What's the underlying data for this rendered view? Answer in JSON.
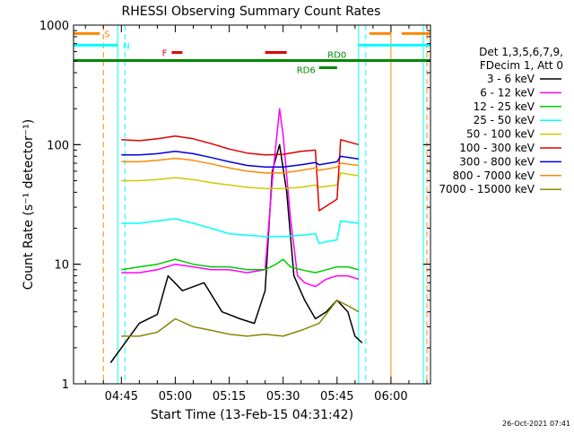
{
  "chart_data": {
    "type": "line",
    "title": "RHESSI Observing Summary Count Rates",
    "xlabel": "Start Time (13-Feb-15 04:31:42)",
    "ylabel": "Count Rate (s⁻¹ detector⁻¹)",
    "y_scale": "log",
    "ylim": [
      1,
      1000
    ],
    "xlim": [
      "04:31:42",
      "06:11:00"
    ],
    "x_ticks": [
      "04:45",
      "05:00",
      "05:15",
      "05:30",
      "05:45",
      "06:00"
    ],
    "y_ticks": [
      "1",
      "10",
      "100",
      "1000"
    ],
    "legend_header": [
      "Det 1,3,5,6,7,9,",
      "FDecim 1, Att 0"
    ],
    "footer_date": "26-Oct-2021 07:41",
    "series": [
      {
        "name": "3 - 6 keV",
        "color": "#000000",
        "x": [
          "04:42",
          "04:50",
          "04:55",
          "04:58",
          "05:02",
          "05:08",
          "05:13",
          "05:18",
          "05:22",
          "05:25",
          "05:27",
          "05:29",
          "05:31",
          "05:33",
          "05:36",
          "05:39",
          "05:42",
          "05:45",
          "05:48",
          "05:50",
          "05:52"
        ],
        "y": [
          1.5,
          3.2,
          3.8,
          8,
          6,
          7,
          4,
          3.5,
          3.2,
          6,
          60,
          100,
          40,
          8,
          5,
          3.5,
          4,
          5,
          4,
          2.5,
          2.2
        ]
      },
      {
        "name": "6 - 12 keV",
        "color": "#ff00ff",
        "x": [
          "04:45",
          "04:50",
          "04:55",
          "05:00",
          "05:05",
          "05:10",
          "05:15",
          "05:20",
          "05:25",
          "05:27",
          "05:29",
          "05:30",
          "05:32",
          "05:34",
          "05:36",
          "05:39",
          "05:42",
          "05:45",
          "05:48",
          "05:51"
        ],
        "y": [
          8.5,
          8.5,
          9,
          10,
          9.5,
          9,
          9,
          8.5,
          9,
          50,
          200,
          120,
          25,
          8,
          7,
          6.5,
          7.5,
          8,
          8,
          7.5
        ]
      },
      {
        "name": "12 - 25 keV",
        "color": "#00cc00",
        "x": [
          "04:45",
          "04:50",
          "04:55",
          "05:00",
          "05:05",
          "05:10",
          "05:15",
          "05:20",
          "05:25",
          "05:28",
          "05:30",
          "05:32",
          "05:35",
          "05:39",
          "05:42",
          "05:45",
          "05:48",
          "05:51"
        ],
        "y": [
          9,
          9.5,
          10,
          11,
          10,
          9.5,
          9.5,
          9,
          9,
          10,
          11,
          9.5,
          9,
          8.5,
          9,
          9.5,
          9.5,
          9
        ]
      },
      {
        "name": "25 - 50 keV",
        "color": "#00ffff",
        "x": [
          "04:45",
          "04:50",
          "04:55",
          "05:00",
          "05:05",
          "05:10",
          "05:15",
          "05:20",
          "05:25",
          "05:30",
          "05:35",
          "05:39",
          "05:40",
          "05:45",
          "05:46",
          "05:51"
        ],
        "y": [
          22,
          22,
          23,
          24,
          22,
          20,
          18,
          17.5,
          17,
          17,
          17.5,
          18,
          15,
          16,
          23,
          22
        ]
      },
      {
        "name": "50 - 100 keV",
        "color": "#cccc00",
        "x": [
          "04:45",
          "04:50",
          "04:55",
          "05:00",
          "05:05",
          "05:10",
          "05:15",
          "05:20",
          "05:25",
          "05:30",
          "05:35",
          "05:39",
          "05:40",
          "05:45",
          "05:46",
          "05:51"
        ],
        "y": [
          50,
          50,
          51,
          53,
          51,
          48,
          46,
          44,
          43,
          43,
          44,
          46,
          44,
          46,
          58,
          55
        ]
      },
      {
        "name": "100 - 300 keV",
        "color": "#dd0000",
        "x": [
          "04:45",
          "04:50",
          "04:55",
          "05:00",
          "05:05",
          "05:10",
          "05:15",
          "05:20",
          "05:25",
          "05:30",
          "05:35",
          "05:39",
          "05:40",
          "05:45",
          "05:46",
          "05:51"
        ],
        "y": [
          110,
          108,
          112,
          118,
          112,
          102,
          92,
          85,
          82,
          83,
          88,
          90,
          28,
          35,
          110,
          100
        ]
      },
      {
        "name": "300 - 800 keV",
        "color": "#0000dd",
        "x": [
          "04:45",
          "04:50",
          "04:55",
          "05:00",
          "05:05",
          "05:10",
          "05:15",
          "05:20",
          "05:25",
          "05:30",
          "05:35",
          "05:39",
          "05:40",
          "05:45",
          "05:46",
          "05:51"
        ],
        "y": [
          82,
          82,
          84,
          88,
          84,
          78,
          72,
          67,
          65,
          65,
          68,
          71,
          68,
          72,
          80,
          76
        ]
      },
      {
        "name": "800 - 7000 keV",
        "color": "#ff8800",
        "x": [
          "04:45",
          "04:50",
          "04:55",
          "05:00",
          "05:05",
          "05:10",
          "05:15",
          "05:20",
          "05:25",
          "05:30",
          "05:35",
          "05:39",
          "05:40",
          "05:45",
          "05:46",
          "05:51"
        ],
        "y": [
          72,
          72,
          74,
          77,
          74,
          69,
          64,
          60,
          58,
          58,
          61,
          64,
          61,
          65,
          70,
          67
        ]
      },
      {
        "name": "7000 - 15000 keV",
        "color": "#888800",
        "x": [
          "04:45",
          "04:50",
          "04:55",
          "05:00",
          "05:05",
          "05:10",
          "05:15",
          "05:20",
          "05:25",
          "05:30",
          "05:35",
          "05:40",
          "05:45",
          "05:48",
          "05:51"
        ],
        "y": [
          2.5,
          2.5,
          2.7,
          3.5,
          3.0,
          2.8,
          2.6,
          2.5,
          2.6,
          2.5,
          2.8,
          3.2,
          5,
          4.5,
          4
        ]
      }
    ],
    "state_bars": [
      {
        "label": "S",
        "color": "#ff8800",
        "y": 850,
        "segments": [
          [
            "04:31:42",
            "04:39"
          ],
          [
            "05:54",
            "06:00"
          ],
          [
            "06:03",
            "06:11:00"
          ]
        ]
      },
      {
        "label": "N",
        "color": "#00ffff",
        "y": 680,
        "segments": [
          [
            "04:31:42",
            "04:44"
          ],
          [
            "05:51",
            "06:11:00"
          ]
        ]
      },
      {
        "label": "F",
        "color": "#dd0000",
        "y": 590,
        "segments": [
          [
            "04:59",
            "05:02"
          ],
          [
            "05:25",
            "05:31"
          ]
        ]
      },
      {
        "label": "RD0",
        "color": "#008800",
        "y": 505,
        "segments": [
          [
            "04:31:42",
            "06:11:00"
          ]
        ]
      },
      {
        "label": "RD6",
        "color": "#008800",
        "y": 440,
        "segments": [
          [
            "05:40",
            "05:45"
          ]
        ]
      }
    ],
    "vertical_markers": [
      {
        "x": "04:40",
        "color": "#ff8800",
        "style": "dashed"
      },
      {
        "x": "04:44",
        "color": "#00ffff",
        "style": "solid"
      },
      {
        "x": "04:46",
        "color": "#00ffff",
        "style": "dashed"
      },
      {
        "x": "05:51",
        "color": "#00ffff",
        "style": "solid"
      },
      {
        "x": "05:53",
        "color": "#00ffff",
        "style": "dashed"
      },
      {
        "x": "06:00",
        "color": "#ff8800",
        "style": "solid"
      },
      {
        "x": "06:09",
        "color": "#00ffff",
        "style": "solid"
      },
      {
        "x": "06:10",
        "color": "#ff8800",
        "style": "dashed"
      }
    ]
  }
}
